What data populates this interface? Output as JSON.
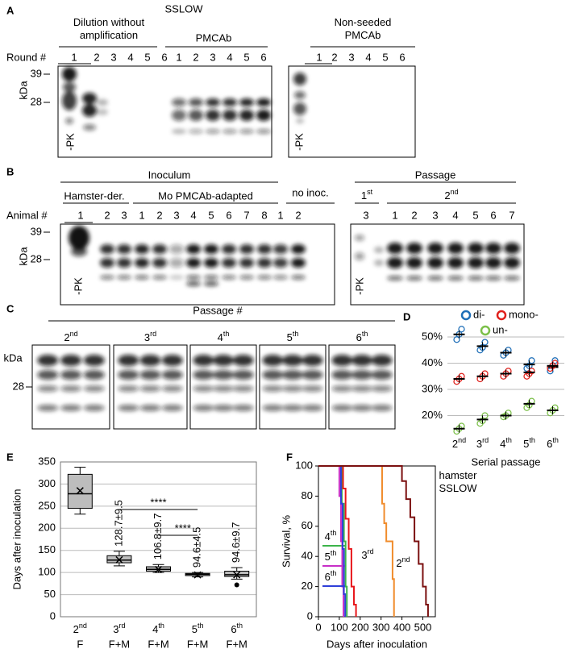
{
  "blots": {
    "A": {
      "panel_label": "A",
      "title": "SSLOW",
      "groups": [
        "Dilution without amplification",
        "PMCAb",
        "Non-seeded PMCAb"
      ],
      "lane_header": "Round #",
      "lanes": [
        "1",
        "2",
        "3",
        "4",
        "5",
        "6",
        "1",
        "2",
        "3",
        "4",
        "5",
        "6"
      ],
      "lanes_right": [
        "1",
        "2",
        "3",
        "4",
        "5",
        "6"
      ],
      "unit": "kDa",
      "markers": [
        "39",
        "28"
      ],
      "control": "-PK",
      "control_right": "-PK"
    },
    "B": {
      "panel_label": "B",
      "groups": [
        "Inoculum",
        "Hamster-der.",
        "Mo PMCAb-adapted",
        "no inoc.",
        "Passage",
        "1st",
        "2nd"
      ],
      "lane_header": "Animal #",
      "lanes": [
        "1",
        "2",
        "3",
        "1",
        "2",
        "3",
        "4",
        "5",
        "6",
        "7",
        "8",
        "1",
        "2"
      ],
      "lanes_right": [
        "3",
        "1",
        "2",
        "3",
        "4",
        "5",
        "6",
        "7"
      ],
      "unit": "kDa",
      "markers": [
        "39",
        "28"
      ],
      "control": "-PK",
      "control_right": "-PK"
    },
    "C": {
      "panel_label": "C",
      "title": "Passage #",
      "passages": [
        "2nd",
        "3rd",
        "4th",
        "5th",
        "6th"
      ],
      "unit": "kDa",
      "markers": [
        "28"
      ]
    }
  },
  "chart_data": [
    {
      "type": "scatter",
      "panel_label": "D",
      "xlabel": "Serial passage",
      "categories": [
        "2nd",
        "3rd",
        "4th",
        "5th",
        "6th"
      ],
      "ylim": [
        14,
        54
      ],
      "yticks": [
        {
          "value": 20,
          "label": "20%"
        },
        {
          "value": 30,
          "label": "30%"
        },
        {
          "value": 40,
          "label": "40%"
        },
        {
          "value": 50,
          "label": "50%"
        }
      ],
      "grid": true,
      "series": [
        {
          "name": "di-",
          "color": "#1f6fb8",
          "values": [
            51,
            46.5,
            44,
            39.5,
            38.5
          ],
          "points": [
            [
              49,
              51,
              53
            ],
            [
              45,
              46,
              48
            ],
            [
              43,
              44,
              45
            ],
            [
              38,
              39,
              41
            ],
            [
              37,
              39,
              41
            ]
          ]
        },
        {
          "name": "mono-",
          "color": "#e0201b",
          "values": [
            34,
            35,
            36,
            36.5,
            39
          ],
          "points": [
            [
              33,
              34,
              35
            ],
            [
              34,
              35,
              36
            ],
            [
              35,
              36,
              37
            ],
            [
              35,
              36,
              37
            ],
            [
              38,
              39,
              40
            ]
          ]
        },
        {
          "name": "un-",
          "color": "#7cc04a",
          "values": [
            15,
            18.5,
            20,
            24.5,
            22
          ],
          "points": [
            [
              14,
              15,
              16
            ],
            [
              17,
              18,
              20
            ],
            [
              19.5,
              20,
              21
            ],
            [
              23,
              24,
              25.5
            ],
            [
              21,
              22,
              23
            ]
          ]
        }
      ]
    },
    {
      "type": "box",
      "panel_label": "E",
      "ylabel": "Days after inoculation",
      "categories": [
        "2nd",
        "3rd",
        "4th",
        "5th",
        "6th"
      ],
      "groups": [
        "F",
        "F+M",
        "F+M",
        "F+M",
        "F+M"
      ],
      "ylim": [
        0,
        350
      ],
      "yticks": [
        0,
        50,
        100,
        150,
        200,
        250,
        300,
        350
      ],
      "grid": true,
      "color": "#bdbdbd",
      "boxes": [
        {
          "min": 232,
          "q1": 245,
          "median": 278,
          "q3": 322,
          "max": 338,
          "mean": 285,
          "outliers": []
        },
        {
          "min": 115,
          "q1": 122,
          "median": 128,
          "q3": 138,
          "max": 148,
          "mean": 128.7,
          "outliers": []
        },
        {
          "min": 100,
          "q1": 103,
          "median": 107,
          "q3": 113,
          "max": 118,
          "mean": 106.8,
          "outliers": []
        },
        {
          "min": 90,
          "q1": 93,
          "median": 96,
          "q3": 98,
          "max": 100,
          "mean": 94.6,
          "outliers": []
        },
        {
          "min": 85,
          "q1": 91,
          "median": 95,
          "q3": 103,
          "max": 111,
          "mean": 94.6,
          "outliers": [
            72
          ]
        }
      ],
      "mean_labels": [
        null,
        "128.7±9.5",
        "106.8±9.7",
        "94.6±4.5",
        "94.6±9.7"
      ],
      "significance_labels": [
        "****",
        "****"
      ]
    },
    {
      "type": "line",
      "panel_label": "F",
      "ylabel": "Survival, %",
      "xlabel": "Days after inoculation",
      "xlim": [
        0,
        560
      ],
      "xticks": [
        0,
        100,
        200,
        300,
        400,
        500
      ],
      "ylim": [
        0,
        100
      ],
      "yticks": [
        0,
        20,
        40,
        60,
        80,
        100
      ],
      "series": [
        {
          "name": "4th",
          "color": "#3cb44a",
          "x": [
            0,
            112,
            112,
            122,
            122,
            130,
            130,
            136,
            136
          ],
          "y": [
            100,
            100,
            75,
            75,
            50,
            50,
            20,
            20,
            0
          ]
        },
        {
          "name": "5th",
          "color": "#c72fc7",
          "x": [
            0,
            100,
            100,
            108,
            108,
            114,
            114,
            120,
            120
          ],
          "y": [
            100,
            100,
            80,
            80,
            50,
            50,
            20,
            20,
            0
          ]
        },
        {
          "name": "6th",
          "color": "#2f3fd9",
          "x": [
            0,
            108,
            108,
            116,
            116,
            122,
            122,
            128,
            128
          ],
          "y": [
            100,
            100,
            75,
            75,
            45,
            45,
            15,
            15,
            0
          ]
        },
        {
          "name": "3rd",
          "color": "#e8161b",
          "x": [
            0,
            118,
            118,
            130,
            130,
            145,
            145,
            158,
            158,
            170,
            170,
            180,
            180
          ],
          "y": [
            100,
            100,
            85,
            85,
            65,
            65,
            45,
            45,
            20,
            20,
            8,
            8,
            0
          ]
        },
        {
          "name": "2nd",
          "color": "#f08c2c",
          "x": [
            0,
            305,
            305,
            315,
            315,
            325,
            325,
            355,
            355,
            362,
            362
          ],
          "y": [
            100,
            100,
            75,
            75,
            62,
            62,
            50,
            50,
            25,
            25,
            0
          ]
        },
        {
          "name": "hamster SSLOW",
          "color": "#7b1010",
          "x": [
            0,
            400,
            400,
            420,
            420,
            440,
            440,
            460,
            460,
            480,
            480,
            500,
            500,
            515,
            515,
            525,
            525
          ],
          "y": [
            100,
            100,
            90,
            90,
            78,
            78,
            66,
            66,
            50,
            50,
            35,
            35,
            20,
            20,
            8,
            8,
            0
          ]
        }
      ]
    }
  ]
}
